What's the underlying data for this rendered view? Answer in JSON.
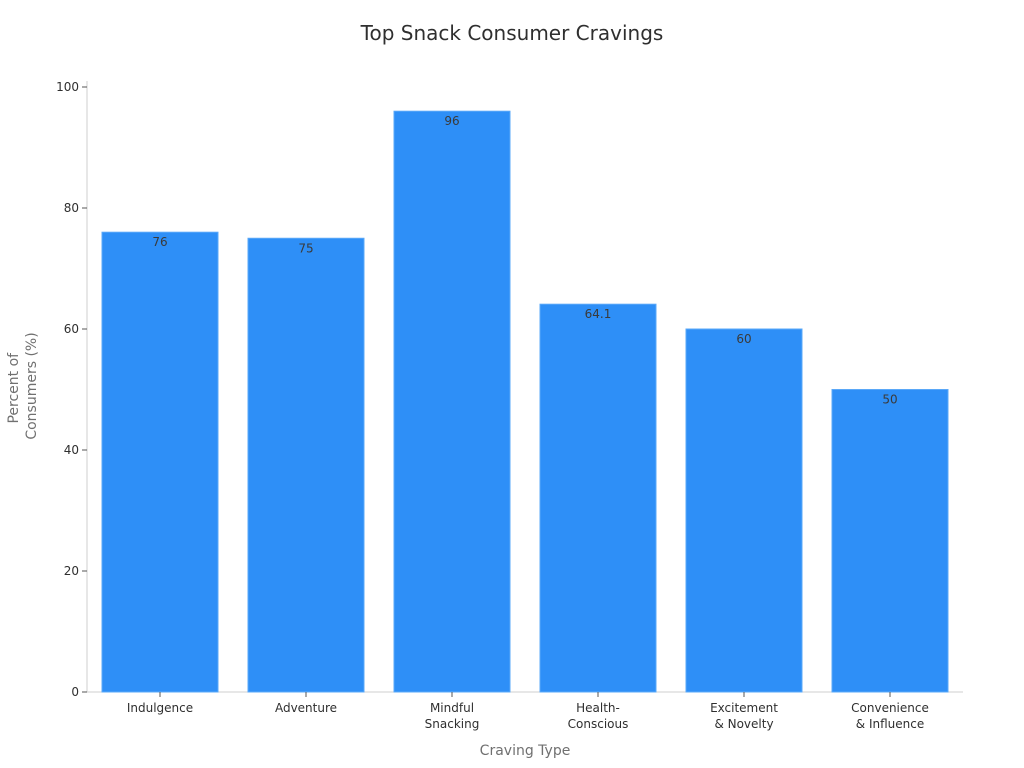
{
  "chart_data": {
    "type": "bar",
    "title": "Top Snack Consumer Cravings",
    "xlabel": "Craving Type",
    "ylabel_lines": [
      "Percent of",
      "Consumers (%)"
    ],
    "categories": [
      [
        "Indulgence"
      ],
      [
        "Adventure"
      ],
      [
        "Mindful",
        "Snacking"
      ],
      [
        "Health-",
        "Conscious"
      ],
      [
        "Excitement",
        "& Novelty"
      ],
      [
        "Convenience",
        "& Influence"
      ]
    ],
    "values": [
      76,
      75,
      96,
      64.1,
      60,
      50
    ],
    "value_labels": [
      "76",
      "75",
      "96",
      "64.1",
      "60",
      "50"
    ],
    "ylim": [
      0,
      100
    ],
    "yticks": [
      0,
      20,
      40,
      60,
      80,
      100
    ],
    "grid": false,
    "legend": "none",
    "bar_color": "#2E8FF7",
    "bar_edge_color": "#5AA8F8",
    "axis_color": "#cfcfcf",
    "text_color": "#2f2f2f"
  }
}
